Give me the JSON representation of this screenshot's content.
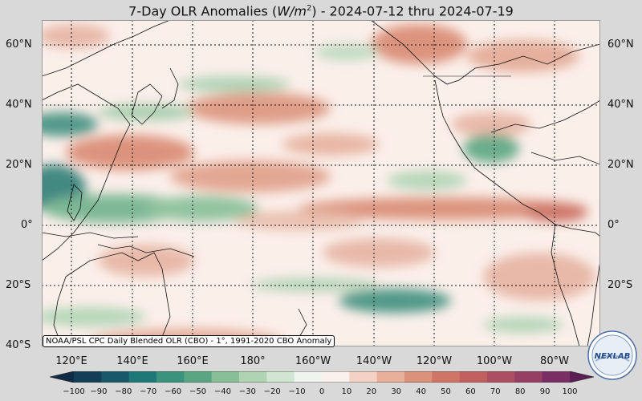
{
  "title": {
    "prefix": "7-Day OLR Anomalies (",
    "unit_base": "W/m",
    "unit_exp": "2",
    "suffix": ") - 2024-07-12 thru 2024-07-19"
  },
  "lat_labels": [
    "60°N",
    "40°N",
    "20°N",
    "0°",
    "20°S",
    "40°S"
  ],
  "lon_labels": [
    "120°E",
    "140°E",
    "160°E",
    "180°",
    "160°W",
    "140°W",
    "120°W",
    "100°W",
    "80°W"
  ],
  "credit": "NOAA/PSL CPC Daily Blended OLR (CBO) - 1°, 1991-2020 CBO Anomaly",
  "colorbar": {
    "ticks": [
      "−100",
      "−90",
      "−80",
      "−70",
      "−60",
      "−50",
      "−40",
      "−30",
      "−20",
      "−10",
      "0",
      "10",
      "20",
      "30",
      "40",
      "50",
      "60",
      "70",
      "80",
      "90",
      "100"
    ],
    "colors": [
      "#0e2a45",
      "#123f57",
      "#17596a",
      "#1f7878",
      "#3a937c",
      "#5aa682",
      "#86bf98",
      "#aed4b4",
      "#d0e6d3",
      "#eef5ef",
      "#fbf1ec",
      "#f3d2c3",
      "#e8b09a",
      "#dc917a",
      "#cf7566",
      "#c1605f",
      "#ad4f62",
      "#953f65",
      "#7a2e63",
      "#5c1f55"
    ]
  },
  "logo": {
    "text": "NEXLAB"
  },
  "colors": {
    "positive": "#d98a72",
    "negative": "#4f9d7c",
    "background": "#fbefea"
  }
}
